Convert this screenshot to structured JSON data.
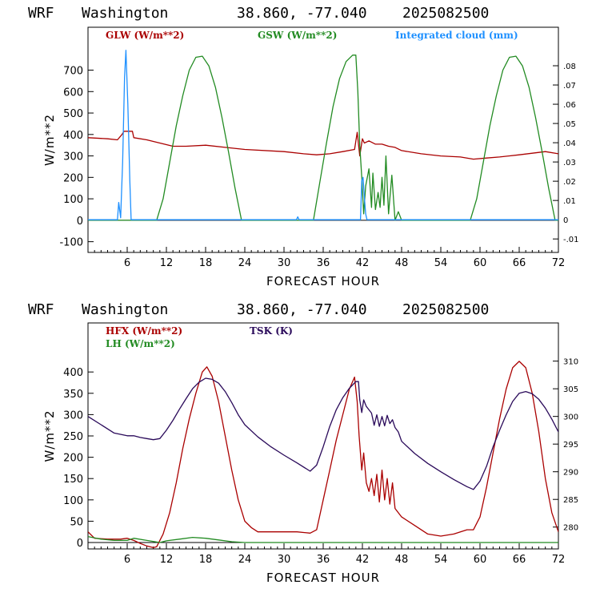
{
  "chart_data": [
    {
      "type": "line",
      "header": {
        "model": "WRF",
        "location": "Washington",
        "coords": "38.860, -77.040",
        "date": "2025082500"
      },
      "xlabel": "FORECAST HOUR",
      "ylabel": "W/m**2",
      "xlim": [
        0,
        72
      ],
      "xticks": [
        6,
        12,
        18,
        24,
        30,
        36,
        42,
        48,
        54,
        60,
        66,
        72
      ],
      "ylim": [
        -150,
        900
      ],
      "yticks": [
        -100,
        0,
        100,
        200,
        300,
        400,
        500,
        600,
        700
      ],
      "y2lim": [
        -0.017,
        0.1
      ],
      "y2ticks": [
        -0.01,
        0,
        0.01,
        0.02,
        0.03,
        0.04,
        0.05,
        0.06,
        0.07,
        0.08
      ],
      "y2ticklabels": [
        "-.01",
        "0",
        ".01",
        ".02",
        ".03",
        ".04",
        ".05",
        ".06",
        ".07",
        ".08"
      ],
      "zero_line": 0,
      "series": [
        {
          "name": "GLW (W/m**2)",
          "axis": "left",
          "color": "#aa0000",
          "x": [
            0,
            3,
            4.5,
            5.2,
            5.5,
            6.8,
            7,
            9,
            11,
            13,
            15,
            18,
            21,
            24,
            30,
            33,
            35,
            37,
            39,
            40.8,
            41.2,
            41.6,
            42,
            42.3,
            43,
            44,
            45,
            46,
            47,
            48,
            51,
            54,
            57,
            59,
            61,
            63,
            66,
            70,
            72
          ],
          "values": [
            385,
            380,
            375,
            400,
            415,
            415,
            385,
            375,
            360,
            345,
            345,
            350,
            340,
            330,
            320,
            310,
            305,
            310,
            320,
            330,
            410,
            300,
            380,
            360,
            370,
            355,
            355,
            345,
            340,
            325,
            310,
            300,
            295,
            285,
            290,
            295,
            305,
            320,
            310
          ]
        },
        {
          "name": "GSW (W/m**2)",
          "axis": "left",
          "color": "#228b22",
          "x": [
            0,
            10.5,
            11.5,
            12.5,
            13.5,
            14.5,
            15.5,
            16.5,
            17.5,
            18.5,
            19.5,
            20.5,
            21.5,
            22.5,
            23.5,
            34.5,
            35.5,
            36.5,
            37.5,
            38.5,
            39.5,
            40.5,
            41,
            41.3,
            41.6,
            41.9,
            42.2,
            42.5,
            43,
            43.4,
            43.6,
            44,
            44.4,
            44.7,
            45,
            45.3,
            45.6,
            46,
            46.5,
            47,
            47.5,
            48,
            58.5,
            59.5,
            60.5,
            61.5,
            62.5,
            63.5,
            64.5,
            65.5,
            66.5,
            67.5,
            68.5,
            69.5,
            70.5,
            71.5,
            72
          ],
          "values": [
            0,
            0,
            100,
            270,
            440,
            580,
            700,
            760,
            765,
            720,
            620,
            480,
            320,
            150,
            0,
            0,
            180,
            360,
            530,
            660,
            740,
            770,
            770,
            600,
            350,
            200,
            30,
            160,
            240,
            60,
            220,
            50,
            130,
            60,
            200,
            70,
            300,
            30,
            210,
            0,
            40,
            0,
            0,
            100,
            270,
            440,
            580,
            700,
            760,
            765,
            720,
            620,
            480,
            320,
            150,
            0,
            0
          ]
        },
        {
          "name": "Integrated cloud (mm)",
          "axis": "right",
          "color": "#1e90ff",
          "x": [
            0,
            4.5,
            4.7,
            5,
            5.3,
            5.6,
            5.8,
            6.1,
            6.4,
            6.6,
            31.9,
            32.1,
            32.3,
            41.7,
            41.9,
            42.1,
            42.3,
            42.5,
            42.7,
            72
          ],
          "values": [
            0,
            0,
            0.009,
            0.001,
            0.03,
            0.074,
            0.088,
            0.06,
            0.02,
            0,
            0,
            0.0015,
            0,
            0,
            0.02,
            0.022,
            0.012,
            0.003,
            0,
            0
          ]
        }
      ]
    },
    {
      "type": "line",
      "header": {
        "model": "WRF",
        "location": "Washington",
        "coords": "38.860, -77.040",
        "date": "2025082500"
      },
      "xlabel": "FORECAST HOUR",
      "ylabel": "W/m**2",
      "xlim": [
        0,
        72
      ],
      "xticks": [
        6,
        12,
        18,
        24,
        30,
        36,
        42,
        48,
        54,
        60,
        66,
        72
      ],
      "ylim": [
        -15,
        515
      ],
      "yticks": [
        0,
        50,
        100,
        150,
        200,
        250,
        300,
        350,
        400
      ],
      "y2lim": [
        276.05,
        316.9
      ],
      "y2ticks": [
        280,
        285,
        290,
        295,
        300,
        305,
        310
      ],
      "y2ticklabels": [
        "280",
        "285",
        "290",
        "295",
        "300",
        "305",
        "310"
      ],
      "zero_line": 0,
      "series": [
        {
          "name": "HFX (W/m**2)",
          "axis": "left",
          "color": "#aa0000",
          "x": [
            0,
            1,
            3,
            5,
            6,
            7,
            8,
            9,
            10,
            10.5,
            11.5,
            12.5,
            13.5,
            14.5,
            15.5,
            16.5,
            17.5,
            18.2,
            19,
            20,
            21,
            22,
            23,
            24,
            25,
            26,
            30,
            32,
            34,
            35,
            36,
            37,
            38,
            39,
            40,
            40.8,
            41.2,
            41.5,
            41.9,
            42.2,
            42.6,
            43,
            43.4,
            43.8,
            44.2,
            44.6,
            45,
            45.4,
            45.8,
            46.2,
            46.6,
            47,
            48,
            50,
            51,
            52,
            54,
            56,
            58,
            59,
            60,
            61,
            62,
            63,
            64,
            65,
            66,
            67,
            68,
            69,
            70,
            71,
            72
          ],
          "values": [
            25,
            10,
            8,
            8,
            10,
            5,
            -2,
            -8,
            -12,
            -10,
            20,
            70,
            140,
            220,
            290,
            350,
            400,
            412,
            390,
            330,
            250,
            170,
            100,
            50,
            35,
            25,
            25,
            25,
            22,
            30,
            100,
            170,
            240,
            300,
            360,
            388,
            330,
            250,
            170,
            210,
            140,
            120,
            150,
            110,
            160,
            95,
            170,
            100,
            150,
            90,
            140,
            80,
            60,
            40,
            30,
            20,
            15,
            20,
            30,
            30,
            60,
            130,
            210,
            290,
            360,
            410,
            425,
            410,
            350,
            260,
            150,
            70,
            25
          ]
        },
        {
          "name": "LH (W/m**2)",
          "axis": "left",
          "color": "#228b22",
          "x": [
            0,
            2,
            4,
            6,
            7,
            9,
            11,
            12,
            14,
            16,
            18,
            20,
            22,
            24,
            26,
            30,
            40,
            50,
            60,
            66,
            72
          ],
          "values": [
            14,
            8,
            5,
            5,
            10,
            5,
            0,
            4,
            8,
            12,
            10,
            6,
            2,
            0,
            0,
            0,
            0,
            0,
            0,
            0,
            0
          ]
        },
        {
          "name": "TSK (K)",
          "axis": "right",
          "color": "#2a0a5a",
          "x": [
            0,
            2,
            4,
            6,
            7,
            8,
            9,
            10,
            11,
            12,
            13,
            14,
            15,
            16,
            17,
            18,
            19,
            20,
            21,
            22,
            23,
            24,
            26,
            28,
            30,
            32,
            34,
            35,
            36,
            37,
            38,
            39,
            40,
            41,
            41.4,
            41.6,
            41.9,
            42.2,
            42.6,
            43,
            43.4,
            43.8,
            44.2,
            44.6,
            45,
            45.4,
            45.8,
            46.2,
            46.6,
            47,
            47.5,
            48,
            50,
            52,
            54,
            56,
            58,
            59,
            60,
            61,
            62,
            63,
            64,
            65,
            66,
            67,
            68,
            69,
            70,
            71,
            72
          ],
          "values": [
            300,
            298.5,
            297,
            296.5,
            296.5,
            296.2,
            296,
            295.8,
            296,
            297.5,
            299.3,
            301.3,
            303.2,
            305,
            306.2,
            306.9,
            306.7,
            306,
            304.5,
            302.5,
            300.3,
            298.5,
            296.3,
            294.5,
            293,
            291.6,
            290.1,
            291.2,
            294.5,
            298.2,
            301.2,
            303.4,
            305.1,
            306.3,
            306.3,
            303,
            300.7,
            303,
            301.8,
            301.2,
            300.6,
            298.4,
            300.3,
            298.2,
            300,
            298.3,
            300.2,
            298.7,
            299.4,
            298,
            297.2,
            295.5,
            293.3,
            291.5,
            290,
            288.6,
            287.3,
            286.8,
            288.3,
            291,
            294.5,
            297.5,
            300.3,
            302.7,
            304.2,
            304.5,
            304.1,
            303.1,
            301.5,
            299.5,
            297.2
          ]
        }
      ]
    }
  ]
}
